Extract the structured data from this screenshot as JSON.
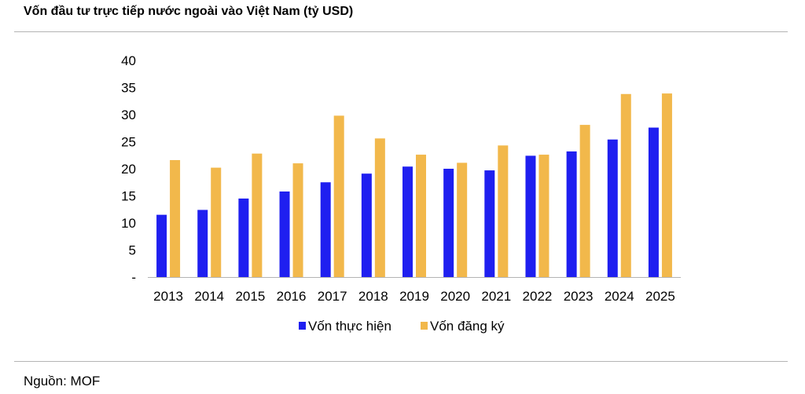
{
  "header": {
    "title": "Vốn đầu tư trực tiếp nước ngoài vào Việt Nam (tỷ USD)"
  },
  "footer": {
    "source": "Nguồn: MOF"
  },
  "colors": {
    "series_realized": "#1f1ff0",
    "series_registered": "#f2b84b",
    "axis": "#b4b4b4"
  },
  "chart_data": {
    "type": "bar",
    "title": "Vốn đầu tư trực tiếp nước ngoài vào Việt Nam (tỷ USD)",
    "xlabel": "",
    "ylabel": "",
    "categories": [
      "2013",
      "2014",
      "2015",
      "2016",
      "2017",
      "2018",
      "2019",
      "2020",
      "2021",
      "2022",
      "2023",
      "2024",
      "2025"
    ],
    "ylim": [
      0,
      40
    ],
    "yticks": [
      0,
      5,
      10,
      15,
      20,
      25,
      30,
      35,
      40
    ],
    "ytick_labels": [
      "-",
      "5",
      "10",
      "15",
      "20",
      "25",
      "30",
      "35",
      "40"
    ],
    "grid": false,
    "legend_position": "bottom-center",
    "series": [
      {
        "name": "Vốn thực hiện",
        "values": [
          11.5,
          12.4,
          14.5,
          15.8,
          17.5,
          19.1,
          20.4,
          20.0,
          19.7,
          22.4,
          23.2,
          25.4,
          27.6
        ]
      },
      {
        "name": "Vốn đăng ký",
        "values": [
          21.6,
          20.2,
          22.8,
          21.0,
          29.8,
          25.6,
          22.6,
          21.1,
          24.3,
          22.6,
          28.1,
          33.8,
          33.9
        ]
      }
    ]
  }
}
